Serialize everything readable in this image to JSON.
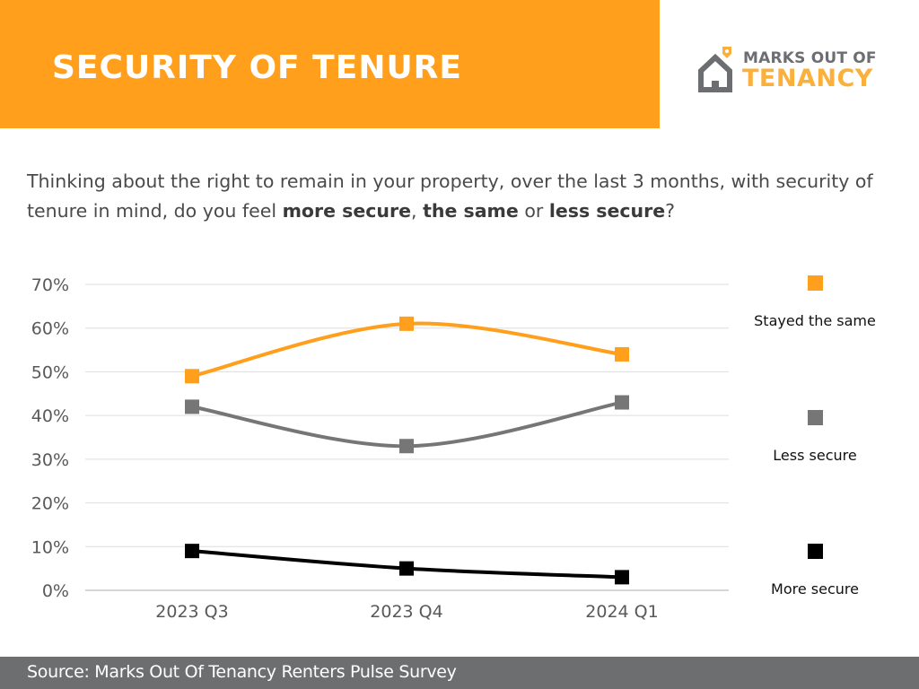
{
  "header": {
    "title": "SECURITY OF TENURE",
    "band_color": "#FF9F1C"
  },
  "logo": {
    "line1": "MARKS OUT OF",
    "line2": "TENANCY",
    "icon": "house-icon",
    "colors": {
      "grey": "#6d6e71",
      "orange": "#FBB03B"
    }
  },
  "question": {
    "part1": "Thinking about the right to remain in your property, over the last 3 months, with security of tenure in mind, do you feel ",
    "bold1": "more secure",
    "part2": ", ",
    "bold2": "the same",
    "part3": " or ",
    "bold3": "less secure",
    "part4": "?"
  },
  "chart_data": {
    "type": "line",
    "title": "",
    "xlabel": "",
    "ylabel": "",
    "categories": [
      "2023 Q3",
      "2023 Q4",
      "2024 Q1"
    ],
    "ylim": [
      0,
      70
    ],
    "yticks": [
      0,
      10,
      20,
      30,
      40,
      50,
      60,
      70
    ],
    "ytick_labels": [
      "0%",
      "10%",
      "20%",
      "30%",
      "40%",
      "50%",
      "60%",
      "70%"
    ],
    "grid": true,
    "smooth": true,
    "legend_position": "right",
    "series": [
      {
        "name": "Stayed the same",
        "values": [
          49,
          61,
          54
        ],
        "color": "#FF9F1C",
        "marker": "square"
      },
      {
        "name": "Less secure",
        "values": [
          42,
          33,
          43
        ],
        "color": "#767676",
        "marker": "square"
      },
      {
        "name": "More secure",
        "values": [
          9,
          5,
          3
        ],
        "color": "#000000",
        "marker": "square"
      }
    ]
  },
  "footer": {
    "source": "Source: Marks Out Of Tenancy Renters Pulse Survey",
    "color": "#6d6e6f"
  }
}
